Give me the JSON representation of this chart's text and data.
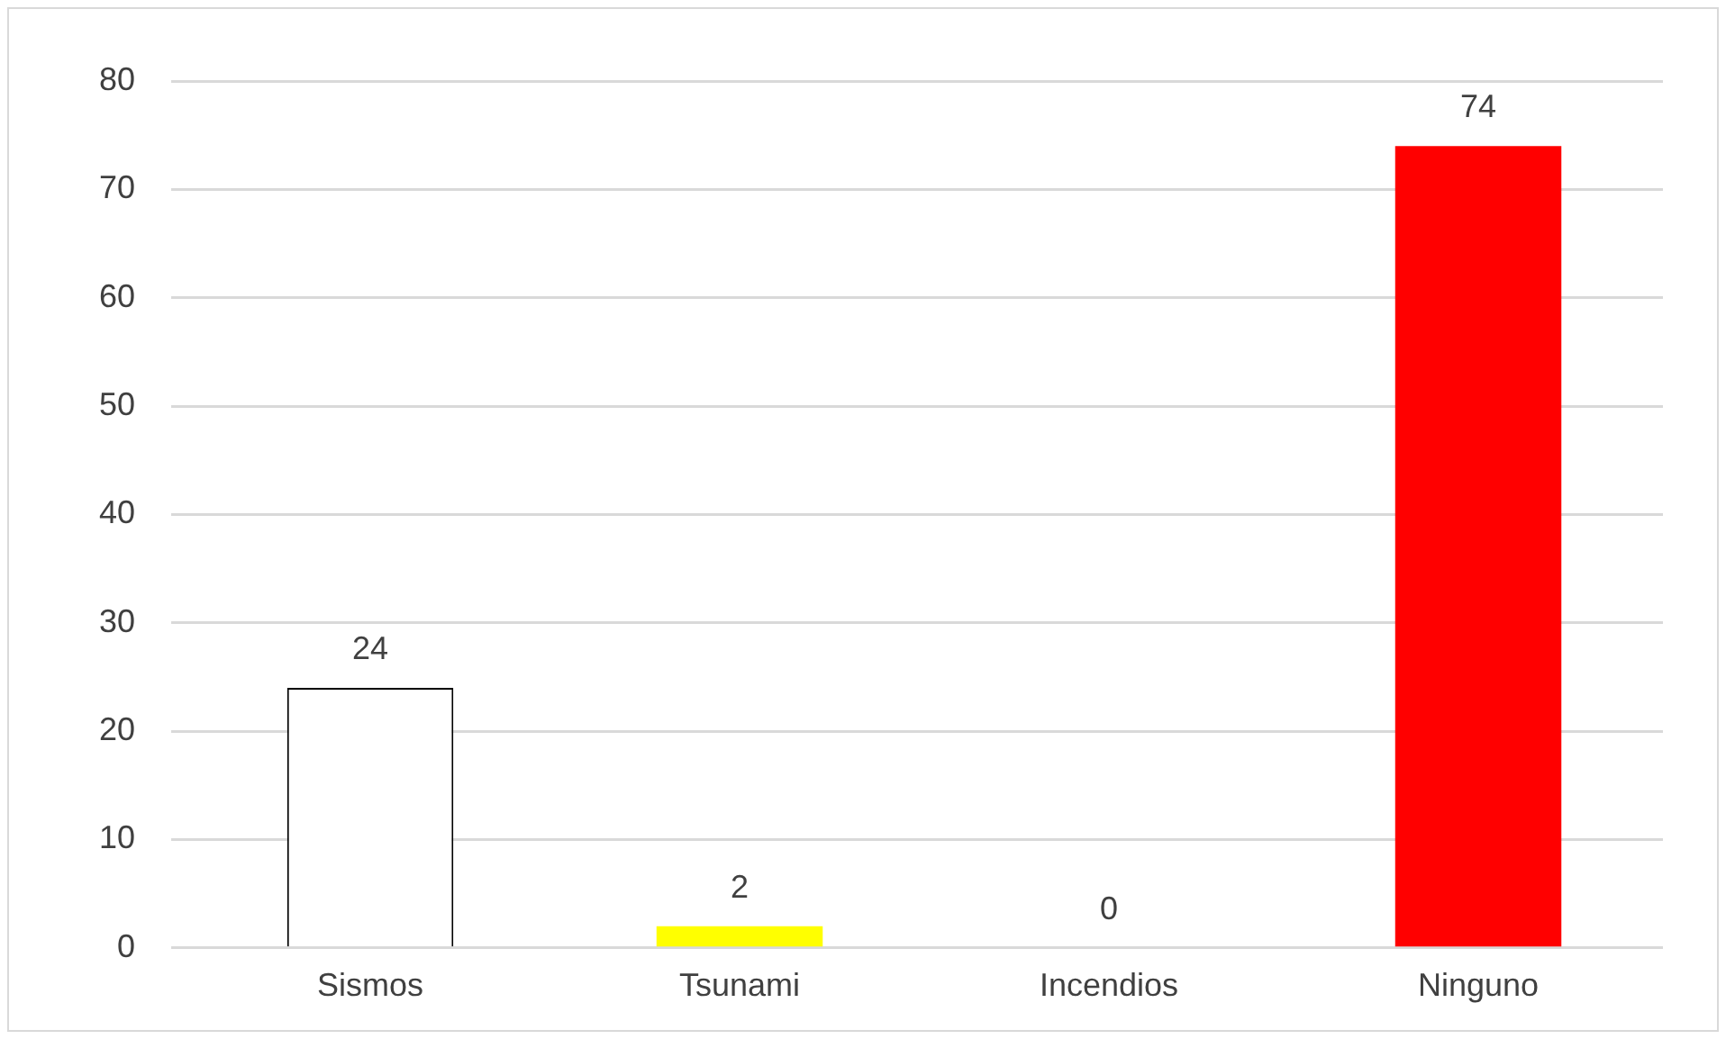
{
  "chart_data": {
    "type": "bar",
    "categories": [
      "Sismos",
      "Tsunami",
      "Incendios",
      "Ninguno"
    ],
    "values": [
      24,
      2,
      0,
      74
    ],
    "colors": [
      "#ffffff",
      "#ffff00",
      "#c59a00",
      "#ff0000"
    ],
    "ylim": [
      0,
      80
    ],
    "yticks": [
      0,
      10,
      20,
      30,
      40,
      50,
      60,
      70,
      80
    ],
    "grid": "y",
    "legend": false,
    "data_labels": true
  }
}
